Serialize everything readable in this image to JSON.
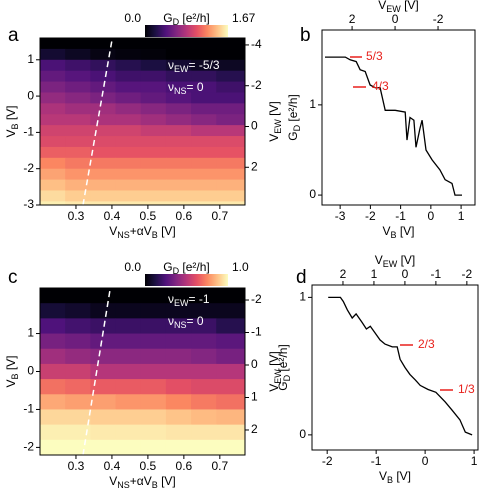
{
  "chart_data": [
    {
      "type": "heatmap",
      "panel_label": "a",
      "xlabel": [
        {
          "text": "V"
        },
        {
          "text": "NS",
          "sub": true
        },
        {
          "text": "+αV"
        },
        {
          "text": "B",
          "sub": true
        },
        {
          "text": " [V]"
        }
      ],
      "ylabel": [
        {
          "text": "V"
        },
        {
          "text": "B",
          "sub": true
        },
        {
          "text": " [V]"
        }
      ],
      "y2label": [
        {
          "text": "V"
        },
        {
          "text": "EW",
          "sub": true
        },
        {
          "text": " [V]"
        }
      ],
      "colorbar_label": [
        {
          "text": "G"
        },
        {
          "text": "D",
          "sub": true
        },
        {
          "text": " [e²/h]"
        }
      ],
      "xlim": [
        0.2,
        0.77
      ],
      "xticks": [
        0.3,
        0.4,
        0.5,
        0.6,
        0.7
      ],
      "ylim": [
        -3,
        1.6
      ],
      "yticks": [
        -3,
        -2,
        -1,
        0,
        1
      ],
      "y2lim": [
        3.85,
        -4.34
      ],
      "y2ticks": [
        -4,
        -2,
        0,
        2
      ],
      "colormap": "magma",
      "clim": [
        0,
        1.67
      ],
      "cticks": [
        {
          "value": 0,
          "label": "0.0"
        },
        {
          "value": 1.67,
          "label": "1.67"
        }
      ],
      "annotation_color": "#ffffff",
      "annotations": [
        [
          {
            "text": "ν"
          },
          {
            "text": "EW",
            "sub": true
          },
          {
            "text": "= -5/3"
          }
        ],
        [
          {
            "text": "ν"
          },
          {
            "text": "NS",
            "sub": true
          },
          {
            "text": "= 0"
          }
        ]
      ],
      "xbins": [
        0.2,
        0.27,
        0.34,
        0.41,
        0.48,
        0.55,
        0.62,
        0.69,
        0.77
      ],
      "ybins": [
        1.6,
        1.3,
        1.0,
        0.7,
        0.4,
        0.1,
        -0.2,
        -0.5,
        -0.8,
        -1.1,
        -1.4,
        -1.7,
        -2.0,
        -2.3,
        -2.6,
        -2.9,
        -3.0
      ],
      "z": [
        [
          0,
          0,
          0,
          0,
          0,
          0,
          0,
          0
        ],
        [
          0.15,
          0.1,
          0.05,
          0.03,
          0.02,
          0,
          0,
          0
        ],
        [
          0.4,
          0.35,
          0.3,
          0.25,
          0.2,
          0.15,
          0.1,
          0.1
        ],
        [
          0.5,
          0.45,
          0.4,
          0.35,
          0.35,
          0.3,
          0.3,
          0.25
        ],
        [
          0.6,
          0.55,
          0.5,
          0.45,
          0.45,
          0.4,
          0.4,
          0.35
        ],
        [
          0.7,
          0.65,
          0.6,
          0.55,
          0.5,
          0.45,
          0.4,
          0.4
        ],
        [
          0.8,
          0.75,
          0.75,
          0.7,
          0.65,
          0.6,
          0.55,
          0.55
        ],
        [
          0.85,
          0.85,
          0.8,
          0.8,
          0.75,
          0.7,
          0.65,
          0.6
        ],
        [
          0.95,
          0.95,
          0.95,
          0.95,
          0.9,
          0.9,
          0.85,
          0.85
        ],
        [
          1.0,
          1.0,
          1.0,
          1.0,
          1.0,
          1.0,
          1.0,
          1.0
        ],
        [
          1.1,
          1.1,
          1.05,
          1.05,
          1.05,
          1.05,
          1.05,
          1.05
        ],
        [
          1.25,
          1.2,
          1.2,
          1.2,
          1.2,
          1.2,
          1.2,
          1.2
        ],
        [
          1.35,
          1.3,
          1.3,
          1.3,
          1.3,
          1.3,
          1.3,
          1.3
        ],
        [
          1.45,
          1.4,
          1.4,
          1.4,
          1.4,
          1.4,
          1.4,
          1.4
        ],
        [
          1.55,
          1.5,
          1.5,
          1.5,
          1.5,
          1.5,
          1.5,
          1.5
        ],
        [
          1.62,
          1.6,
          1.6,
          1.6,
          1.6,
          1.6,
          1.6,
          1.6
        ]
      ]
    },
    {
      "type": "line",
      "panel_label": "b",
      "color": "#000000",
      "xlabel": [
        {
          "text": "V"
        },
        {
          "text": "B",
          "sub": true
        },
        {
          "text": " [V]"
        }
      ],
      "ylabel": [
        {
          "text": "G"
        },
        {
          "text": "D",
          "sub": true
        },
        {
          "text": " [e²/h]"
        }
      ],
      "x2label": [
        {
          "text": "V"
        },
        {
          "text": "EW",
          "sub": true
        },
        {
          "text": " [V]"
        }
      ],
      "xlim": [
        -3.6,
        1.46
      ],
      "xticks": [
        -3,
        -2,
        -1,
        0,
        1
      ],
      "ylim": [
        -0.11,
        1.83
      ],
      "yticks": [
        0,
        1
      ],
      "x2lim": [
        3.4,
        -3.72
      ],
      "x2ticks": [
        2,
        0,
        -2
      ],
      "annotation_color": "#e8211c",
      "annotations": [
        "5/3",
        "4/3"
      ],
      "x": [
        -3.5,
        -2.83,
        -2.67,
        -2.47,
        -2.34,
        -2.17,
        -2.01,
        -1.84,
        -1.68,
        -1.51,
        -1.18,
        -0.85,
        -0.79,
        -0.69,
        -0.56,
        -0.49,
        -0.36,
        -0.29,
        -0.16,
        0.04,
        0.3,
        0.47,
        0.7,
        0.8,
        1.03
      ],
      "values": [
        1.53,
        1.53,
        1.5,
        1.48,
        1.39,
        1.37,
        1.22,
        1.19,
        1.19,
        0.94,
        0.94,
        0.92,
        0.61,
        0.86,
        0.83,
        0.53,
        0.74,
        0.83,
        0.5,
        0.39,
        0.28,
        0.17,
        0.13,
        0,
        0
      ]
    },
    {
      "type": "heatmap",
      "panel_label": "c",
      "xlabel": [
        {
          "text": "V"
        },
        {
          "text": "NS",
          "sub": true
        },
        {
          "text": "+αV"
        },
        {
          "text": "B",
          "sub": true
        },
        {
          "text": " [V]"
        }
      ],
      "ylabel": [
        {
          "text": "V"
        },
        {
          "text": "B",
          "sub": true
        },
        {
          "text": " [V]"
        }
      ],
      "y2label": [
        {
          "text": "V"
        },
        {
          "text": "EW",
          "sub": true
        },
        {
          "text": " [V]"
        }
      ],
      "colorbar_label": [
        {
          "text": "G"
        },
        {
          "text": "D",
          "sub": true
        },
        {
          "text": " [e²/h]"
        }
      ],
      "xlim": [
        0.2,
        0.77
      ],
      "xticks": [
        0.3,
        0.4,
        0.5,
        0.6,
        0.7
      ],
      "ylim": [
        -2.2,
        2.2
      ],
      "yticks": [
        -2,
        -1,
        0,
        1
      ],
      "y2lim": [
        2.77,
        -2.37
      ],
      "y2ticks": [
        -2,
        -1,
        0,
        1,
        2
      ],
      "colormap": "magma",
      "clim": [
        0,
        1.0
      ],
      "cticks": [
        {
          "value": 0,
          "label": "0.0"
        },
        {
          "value": 1.0,
          "label": "1.0"
        }
      ],
      "annotation_color": "#ffffff",
      "annotations": [
        [
          {
            "text": "ν"
          },
          {
            "text": "EW",
            "sub": true
          },
          {
            "text": "= -1"
          }
        ],
        [
          {
            "text": "ν"
          },
          {
            "text": "NS",
            "sub": true
          },
          {
            "text": "= 0"
          }
        ]
      ],
      "xbins": [
        0.2,
        0.27,
        0.34,
        0.41,
        0.48,
        0.55,
        0.62,
        0.69,
        0.77
      ],
      "ybins": [
        2.2,
        1.8,
        1.4,
        1.0,
        0.6,
        0.2,
        -0.2,
        -0.6,
        -1.0,
        -1.4,
        -1.8,
        -2.2
      ],
      "z": [
        [
          0,
          0,
          0,
          0,
          0,
          0,
          0,
          0
        ],
        [
          0.1,
          0.08,
          0.05,
          0.05,
          0.05,
          0.05,
          0.05,
          0.05
        ],
        [
          0.25,
          0.22,
          0.2,
          0.2,
          0.2,
          0.2,
          0.2,
          0.15
        ],
        [
          0.35,
          0.33,
          0.3,
          0.3,
          0.3,
          0.3,
          0.3,
          0.28
        ],
        [
          0.45,
          0.42,
          0.4,
          0.4,
          0.4,
          0.4,
          0.38,
          0.35
        ],
        [
          0.55,
          0.55,
          0.5,
          0.5,
          0.5,
          0.5,
          0.5,
          0.5
        ],
        [
          0.7,
          0.68,
          0.65,
          0.65,
          0.65,
          0.62,
          0.6,
          0.6
        ],
        [
          0.82,
          0.8,
          0.8,
          0.78,
          0.78,
          0.75,
          0.72,
          0.7
        ],
        [
          0.92,
          0.92,
          0.9,
          0.9,
          0.9,
          0.88,
          0.86,
          0.85
        ],
        [
          0.97,
          0.97,
          0.96,
          0.96,
          0.96,
          0.95,
          0.95,
          0.95
        ],
        [
          1.0,
          1.0,
          1.0,
          1.0,
          1.0,
          1.0,
          1.0,
          1.0
        ]
      ]
    },
    {
      "type": "line",
      "panel_label": "d",
      "color": "#000000",
      "xlabel": [
        {
          "text": "V"
        },
        {
          "text": "B",
          "sub": true
        },
        {
          "text": " [V]"
        }
      ],
      "ylabel": [
        {
          "text": "G"
        },
        {
          "text": "D",
          "sub": true
        },
        {
          "text": " [e²/h]"
        }
      ],
      "x2label": [
        {
          "text": "V"
        },
        {
          "text": "EW",
          "sub": true
        },
        {
          "text": " [V]"
        }
      ],
      "xlim": [
        -2.31,
        1.08
      ],
      "xticks": [
        -2,
        -1,
        0,
        1
      ],
      "ylim": [
        -0.11,
        1.09
      ],
      "yticks": [
        0,
        1
      ],
      "x2lim": [
        3.0,
        -2.36
      ],
      "x2ticks": [
        2,
        1,
        0,
        -1,
        -2
      ],
      "annotation_color": "#e8211c",
      "annotations": [
        "2/3",
        "1/3"
      ],
      "x": [
        -1.98,
        -1.73,
        -1.67,
        -1.59,
        -1.49,
        -1.41,
        -1.29,
        -1.2,
        -1.12,
        -1.02,
        -0.92,
        -0.82,
        -0.67,
        -0.57,
        -0.51,
        -0.41,
        -0.31,
        -0.2,
        -0.1,
        0.06,
        0.22,
        0.41,
        0.55,
        0.71,
        0.82,
        0.96
      ],
      "values": [
        1.0,
        1.0,
        0.97,
        0.91,
        0.85,
        0.88,
        0.82,
        0.77,
        0.79,
        0.74,
        0.69,
        0.66,
        0.64,
        0.64,
        0.55,
        0.49,
        0.44,
        0.4,
        0.36,
        0.33,
        0.31,
        0.24,
        0.18,
        0.11,
        0.02,
        0
      ]
    }
  ]
}
